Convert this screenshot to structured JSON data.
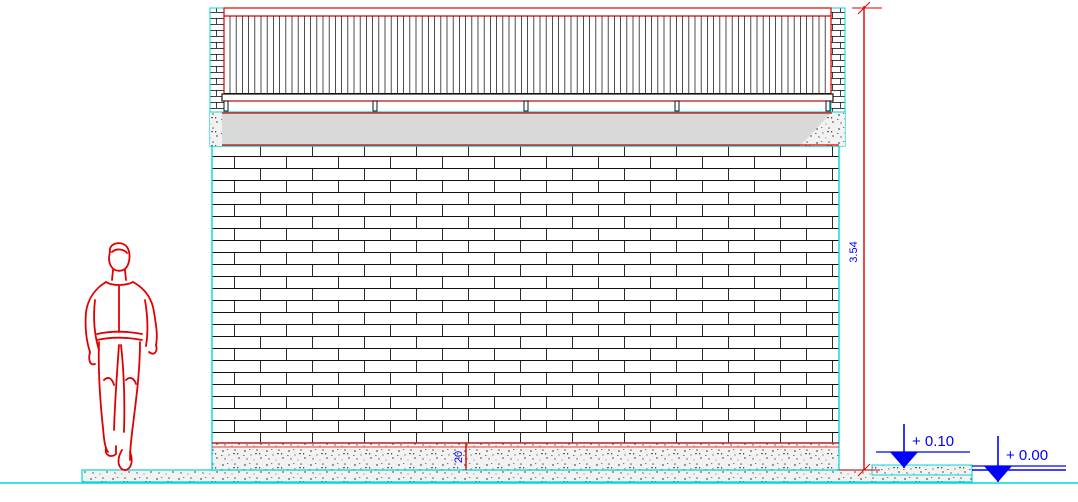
{
  "dimensions": {
    "total_height": "3.54",
    "plinth_height": "20"
  },
  "levels": {
    "upper": "+ 0.10",
    "lower": "+ 0.00"
  },
  "colors": {
    "outline": "#00d8d8",
    "dimension": "#e00000",
    "brick_line": "#111111",
    "concrete": "#e6e6e6",
    "coping": "#d9d9d9",
    "level_marker": "#0000ff",
    "dimension_text": "#0000ff"
  }
}
